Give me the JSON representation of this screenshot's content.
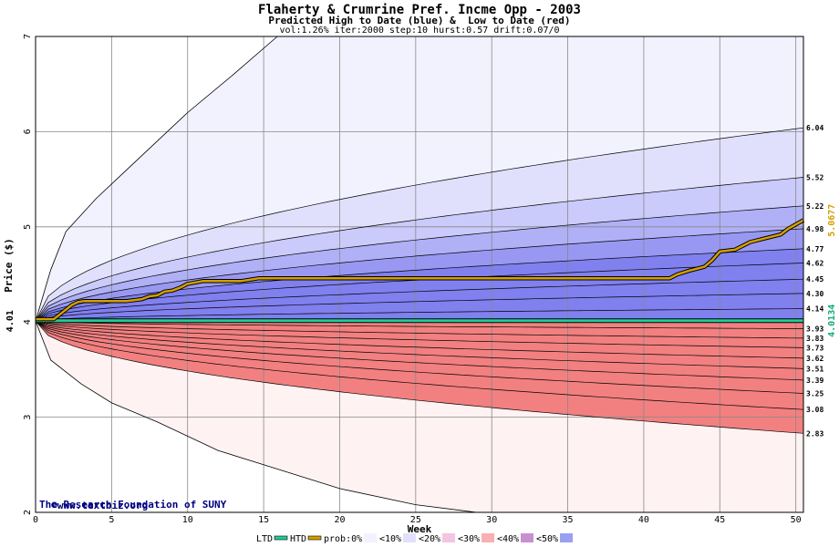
{
  "title": "Flaherty & Crumrine Pref. Incme Opp - 2003",
  "subtitle": "Predicted High to Date (blue) &  Low to Date (red)",
  "params": "vol:1.26% iter:2000 step:10 hurst:0.57 drift:0.07/0",
  "watermark": {
    "site": "www.textbiz.org",
    "org": "The Research Foundation of SUNY"
  },
  "legend": {
    "ltd": "LTD",
    "htd": "HTD",
    "prob": "prob:0%",
    "bins": [
      "<10%",
      "<20%",
      "<30%",
      "<40%",
      "<50%"
    ]
  },
  "colors": {
    "ltd": "#22cc99",
    "htd": "#d4a000",
    "blue_bands": [
      "#f2f2ff",
      "#e0e0fc",
      "#cacafb",
      "#b0b0f7",
      "#9898f3",
      "#8080ef"
    ],
    "red_bands": [
      "#fff2f2",
      "#fde2e2",
      "#fbcaca",
      "#f8b0b0",
      "#f59898",
      "#f28080"
    ],
    "grid": "#888888"
  },
  "chart_data": {
    "type": "line",
    "xlabel": "Week",
    "ylabel": "Price ($)",
    "xlim": [
      0,
      50.5
    ],
    "ylim": [
      2,
      7
    ],
    "x_ticks": [
      0,
      5,
      10,
      15,
      20,
      25,
      30,
      35,
      40,
      45,
      50
    ],
    "y_ticks": [
      2,
      3,
      4,
      5,
      6,
      7
    ],
    "start_price": 4.01,
    "start_label": "4.01",
    "high_quantiles_end": [
      6.04,
      5.52,
      5.22,
      4.98,
      4.77,
      4.62,
      4.45,
      4.3,
      4.14
    ],
    "high_quantile_labels": [
      "6.04",
      "5.52",
      "5.22",
      "4.98",
      "4.77",
      "4.62",
      "4.45",
      "4.30",
      "4.14"
    ],
    "high_outer_envelope": {
      "x": [
        0,
        1,
        2,
        4,
        6,
        8,
        10,
        13,
        15.9
      ],
      "y": [
        4.01,
        4.55,
        4.95,
        5.3,
        5.6,
        5.9,
        6.2,
        6.6,
        7.0
      ]
    },
    "low_quantiles_end": [
      3.93,
      3.83,
      3.73,
      3.62,
      3.51,
      3.39,
      3.25,
      3.08,
      2.83
    ],
    "low_quantile_labels": [
      "3.93",
      "3.83",
      "3.73",
      "3.62",
      "3.51",
      "3.39",
      "3.25",
      "3.08",
      "2.83"
    ],
    "low_outer_envelope": {
      "x": [
        0,
        1,
        3,
        5,
        8,
        12,
        16,
        20,
        25,
        29
      ],
      "y": [
        4.01,
        3.6,
        3.35,
        3.15,
        2.95,
        2.65,
        2.45,
        2.25,
        2.08,
        2.0
      ]
    },
    "htd_path": {
      "x": [
        0,
        1.2,
        1.6,
        2.0,
        2.4,
        2.8,
        3.2,
        6.0,
        7.0,
        7.5,
        8.0,
        8.5,
        9.0,
        9.5,
        10.0,
        11.0,
        12.0,
        13.5,
        14.7,
        15.0,
        20.0,
        25.0,
        30.0,
        35.0,
        40.0,
        41.7,
        42.2,
        43.0,
        44.0,
        44.5,
        45.0,
        46.0,
        47.0,
        48.0,
        49.0,
        49.5,
        50.5
      ],
      "y": [
        4.03,
        4.03,
        4.08,
        4.13,
        4.18,
        4.21,
        4.22,
        4.22,
        4.24,
        4.27,
        4.28,
        4.32,
        4.33,
        4.36,
        4.4,
        4.43,
        4.43,
        4.43,
        4.46,
        4.46,
        4.46,
        4.46,
        4.46,
        4.46,
        4.46,
        4.46,
        4.5,
        4.54,
        4.58,
        4.65,
        4.74,
        4.76,
        4.84,
        4.88,
        4.92,
        4.98,
        5.07
      ]
    },
    "htd_value": 5.0677,
    "htd_label": "5.0677",
    "ltd_value": 4.0134,
    "ltd_label": "4.0134"
  }
}
